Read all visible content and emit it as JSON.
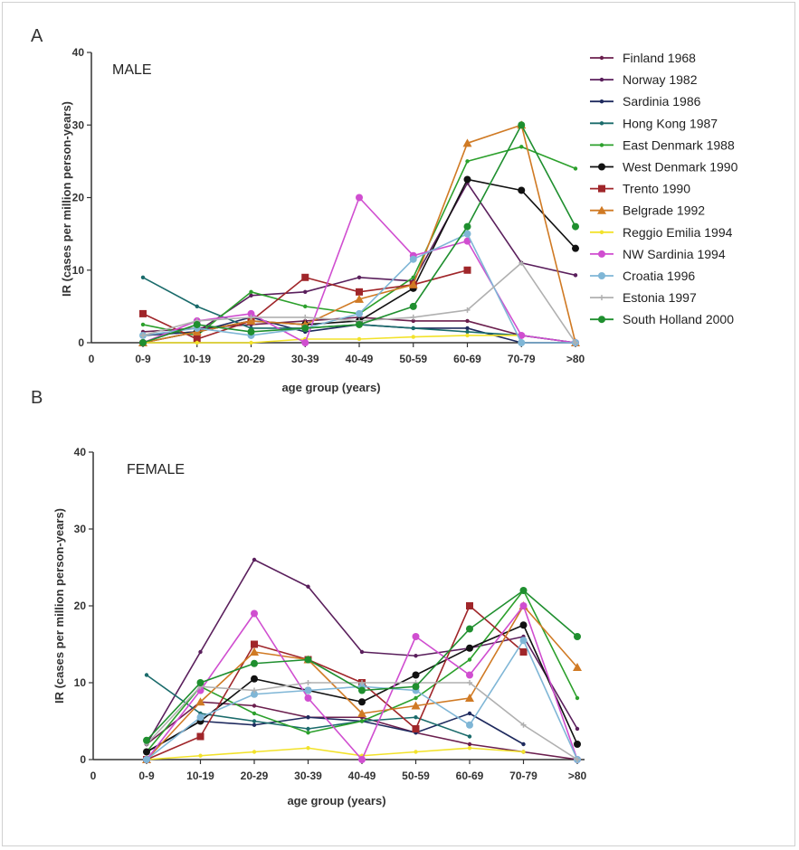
{
  "chart_data": [
    {
      "type": "line",
      "panel": "A",
      "title": "MALE",
      "xlabel": "age group (years)",
      "ylabel": "IR (cases per million person-years)",
      "ylim": [
        0,
        40
      ],
      "yticks": [
        0,
        10,
        20,
        30,
        40
      ],
      "categories": [
        "0-9",
        "10-19",
        "20-29",
        "30-39",
        "40-49",
        "50-59",
        "60-69",
        "70-79",
        ">80"
      ],
      "x_origin_label": "0",
      "legend_position": "right",
      "series": [
        {
          "name": "Finland 1968",
          "color": "#6b1f4e",
          "marker": "dot",
          "values": [
            1.5,
            2,
            2.5,
            3,
            3.5,
            3,
            3,
            1,
            0
          ]
        },
        {
          "name": "Norway 1982",
          "color": "#5a1f5c",
          "marker": "dot",
          "values": [
            1,
            1.5,
            6.5,
            7,
            9,
            8.5,
            22,
            11,
            9.3
          ]
        },
        {
          "name": "Sardinia 1986",
          "color": "#1e2a5e",
          "marker": "dot",
          "values": [
            1,
            1.5,
            3.5,
            1.5,
            2.5,
            2,
            2,
            0,
            0
          ]
        },
        {
          "name": "Hong Kong 1987",
          "color": "#1a6b6b",
          "marker": "dot",
          "values": [
            9,
            5,
            2,
            2,
            2.5,
            2,
            1.5,
            1,
            0
          ]
        },
        {
          "name": "East Denmark 1988",
          "color": "#2ca02c",
          "marker": "dot",
          "values": [
            2.5,
            1,
            7,
            5,
            4,
            9,
            25,
            27,
            24
          ]
        },
        {
          "name": "West Denmark 1990",
          "color": "#111111",
          "marker": "circle",
          "values": [
            0,
            1.5,
            3,
            2.5,
            3,
            7.5,
            22.5,
            21,
            13
          ]
        },
        {
          "name": "Trento 1990",
          "color": "#a0262a",
          "marker": "square",
          "values": [
            4,
            0.5,
            3,
            9,
            7,
            8,
            10,
            null,
            null
          ]
        },
        {
          "name": "Belgrade 1992",
          "color": "#d07a24",
          "marker": "triangle",
          "values": [
            0,
            1.5,
            3,
            2.5,
            6,
            8,
            27.5,
            30,
            0
          ]
        },
        {
          "name": "Reggio Emilia 1994",
          "color": "#f2e22a",
          "marker": "dot",
          "values": [
            0,
            0,
            0,
            0.5,
            0.5,
            0.8,
            1,
            1,
            null
          ]
        },
        {
          "name": "NW Sardinia 1994",
          "color": "#d04ed0",
          "marker": "circle",
          "values": [
            0,
            3,
            4,
            0,
            20,
            12,
            14,
            1,
            0
          ]
        },
        {
          "name": "Croatia 1996",
          "color": "#7fb6d6",
          "marker": "circle",
          "values": [
            1,
            2,
            1,
            2,
            4,
            11.5,
            15,
            0,
            0
          ]
        },
        {
          "name": "Estonia 1997",
          "color": "#b0b0b0",
          "marker": "cross",
          "values": [
            1,
            3,
            3.5,
            3.5,
            3,
            3.5,
            4.5,
            11,
            0
          ]
        },
        {
          "name": "South Holland 2000",
          "color": "#1f8f2f",
          "marker": "circle",
          "values": [
            0,
            2.5,
            1.5,
            2,
            2.5,
            5,
            16,
            30,
            16
          ]
        }
      ]
    },
    {
      "type": "line",
      "panel": "B",
      "title": "FEMALE",
      "xlabel": "age group (years)",
      "ylabel": "IR (cases per million person-years)",
      "ylim": [
        0,
        40
      ],
      "yticks": [
        0,
        10,
        20,
        30,
        40
      ],
      "categories": [
        "0-9",
        "10-19",
        "20-29",
        "30-39",
        "40-49",
        "50-59",
        "60-69",
        "70-79",
        ">80"
      ],
      "x_origin_label": "0",
      "series": [
        {
          "name": "Finland 1968",
          "color": "#6b1f4e",
          "marker": "dot",
          "values": [
            2,
            7.5,
            7,
            5.5,
            5.5,
            3.5,
            2,
            1,
            0
          ]
        },
        {
          "name": "Norway 1982",
          "color": "#5a1f5c",
          "marker": "dot",
          "values": [
            2,
            14,
            26,
            22.5,
            14,
            13.5,
            14.5,
            16,
            4
          ]
        },
        {
          "name": "Sardinia 1986",
          "color": "#1e2a5e",
          "marker": "dot",
          "values": [
            1,
            5,
            4.5,
            5.5,
            5,
            3.5,
            6,
            2,
            null
          ]
        },
        {
          "name": "Hong Kong 1987",
          "color": "#1a6b6b",
          "marker": "dot",
          "values": [
            11,
            6,
            5,
            4,
            5,
            5.5,
            3,
            null,
            null
          ]
        },
        {
          "name": "East Denmark 1988",
          "color": "#2ca02c",
          "marker": "dot",
          "values": [
            1,
            9.5,
            6,
            3.5,
            5,
            8,
            13,
            22,
            8
          ]
        },
        {
          "name": "West Denmark 1990",
          "color": "#111111",
          "marker": "circle",
          "values": [
            1,
            5,
            10.5,
            9,
            7.5,
            11,
            14.5,
            17.5,
            2
          ]
        },
        {
          "name": "Trento 1990",
          "color": "#a0262a",
          "marker": "square",
          "values": [
            0,
            3,
            15,
            13,
            10,
            4,
            20,
            14,
            null
          ]
        },
        {
          "name": "Belgrade 1992",
          "color": "#d07a24",
          "marker": "triangle",
          "values": [
            0,
            7.5,
            14,
            13,
            6,
            7,
            8,
            20,
            12
          ]
        },
        {
          "name": "Reggio Emilia 1994",
          "color": "#f2e22a",
          "marker": "dot",
          "values": [
            0,
            0.5,
            1,
            1.5,
            0.5,
            1,
            1.5,
            1,
            null
          ]
        },
        {
          "name": "NW Sardinia 1994",
          "color": "#d04ed0",
          "marker": "circle",
          "values": [
            0,
            9,
            19,
            8,
            0,
            16,
            11,
            20,
            0
          ]
        },
        {
          "name": "Croatia 1996",
          "color": "#7fb6d6",
          "marker": "circle",
          "values": [
            0,
            5.5,
            8.5,
            9,
            9.5,
            9,
            4.5,
            15.5,
            0
          ]
        },
        {
          "name": "Estonia 1997",
          "color": "#b0b0b0",
          "marker": "cross",
          "values": [
            2,
            9.5,
            9,
            10,
            10,
            10,
            10,
            4.5,
            0
          ]
        },
        {
          "name": "South Holland 2000",
          "color": "#1f8f2f",
          "marker": "circle",
          "values": [
            2.5,
            10,
            12.5,
            13,
            9,
            9.5,
            17,
            22,
            16
          ]
        }
      ]
    }
  ]
}
